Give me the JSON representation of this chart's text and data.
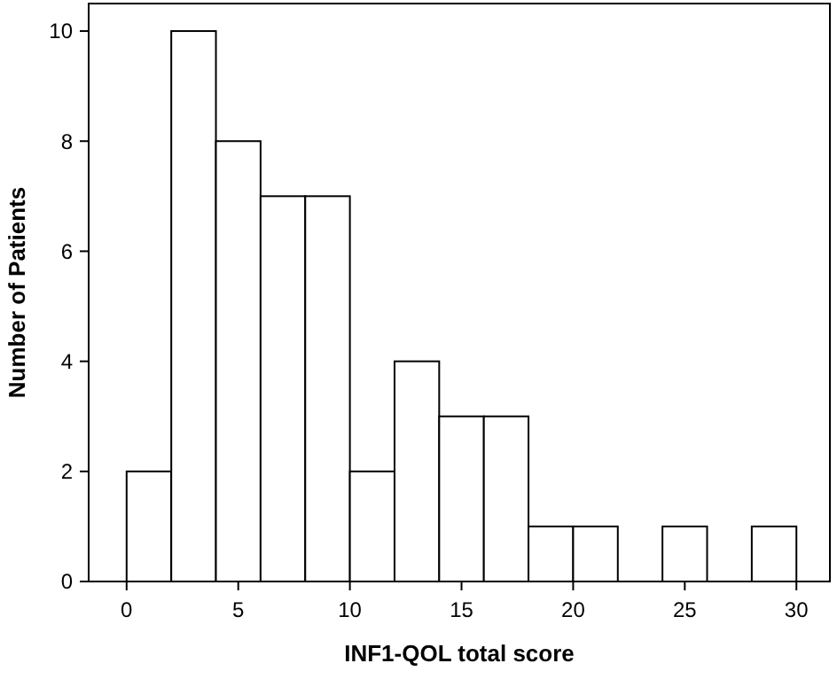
{
  "chart_data": {
    "type": "histogram",
    "xlabel": "INF1-QOL total score",
    "ylabel": "Number of Patients",
    "bins": [
      0,
      2,
      4,
      6,
      8,
      10,
      12,
      14,
      16,
      18,
      20,
      22,
      24,
      26,
      28,
      30
    ],
    "values": [
      2,
      10,
      8,
      7,
      7,
      2,
      4,
      3,
      3,
      1,
      1,
      0,
      1,
      0,
      1
    ],
    "color": "#ffffff",
    "xlim": [
      -1.7,
      31.5
    ],
    "ylim": [
      0,
      10.5
    ],
    "xticks": [
      0,
      5,
      10,
      15,
      20,
      25,
      30
    ],
    "yticks": [
      0,
      2,
      4,
      6,
      8,
      10
    ],
    "grid": false
  }
}
